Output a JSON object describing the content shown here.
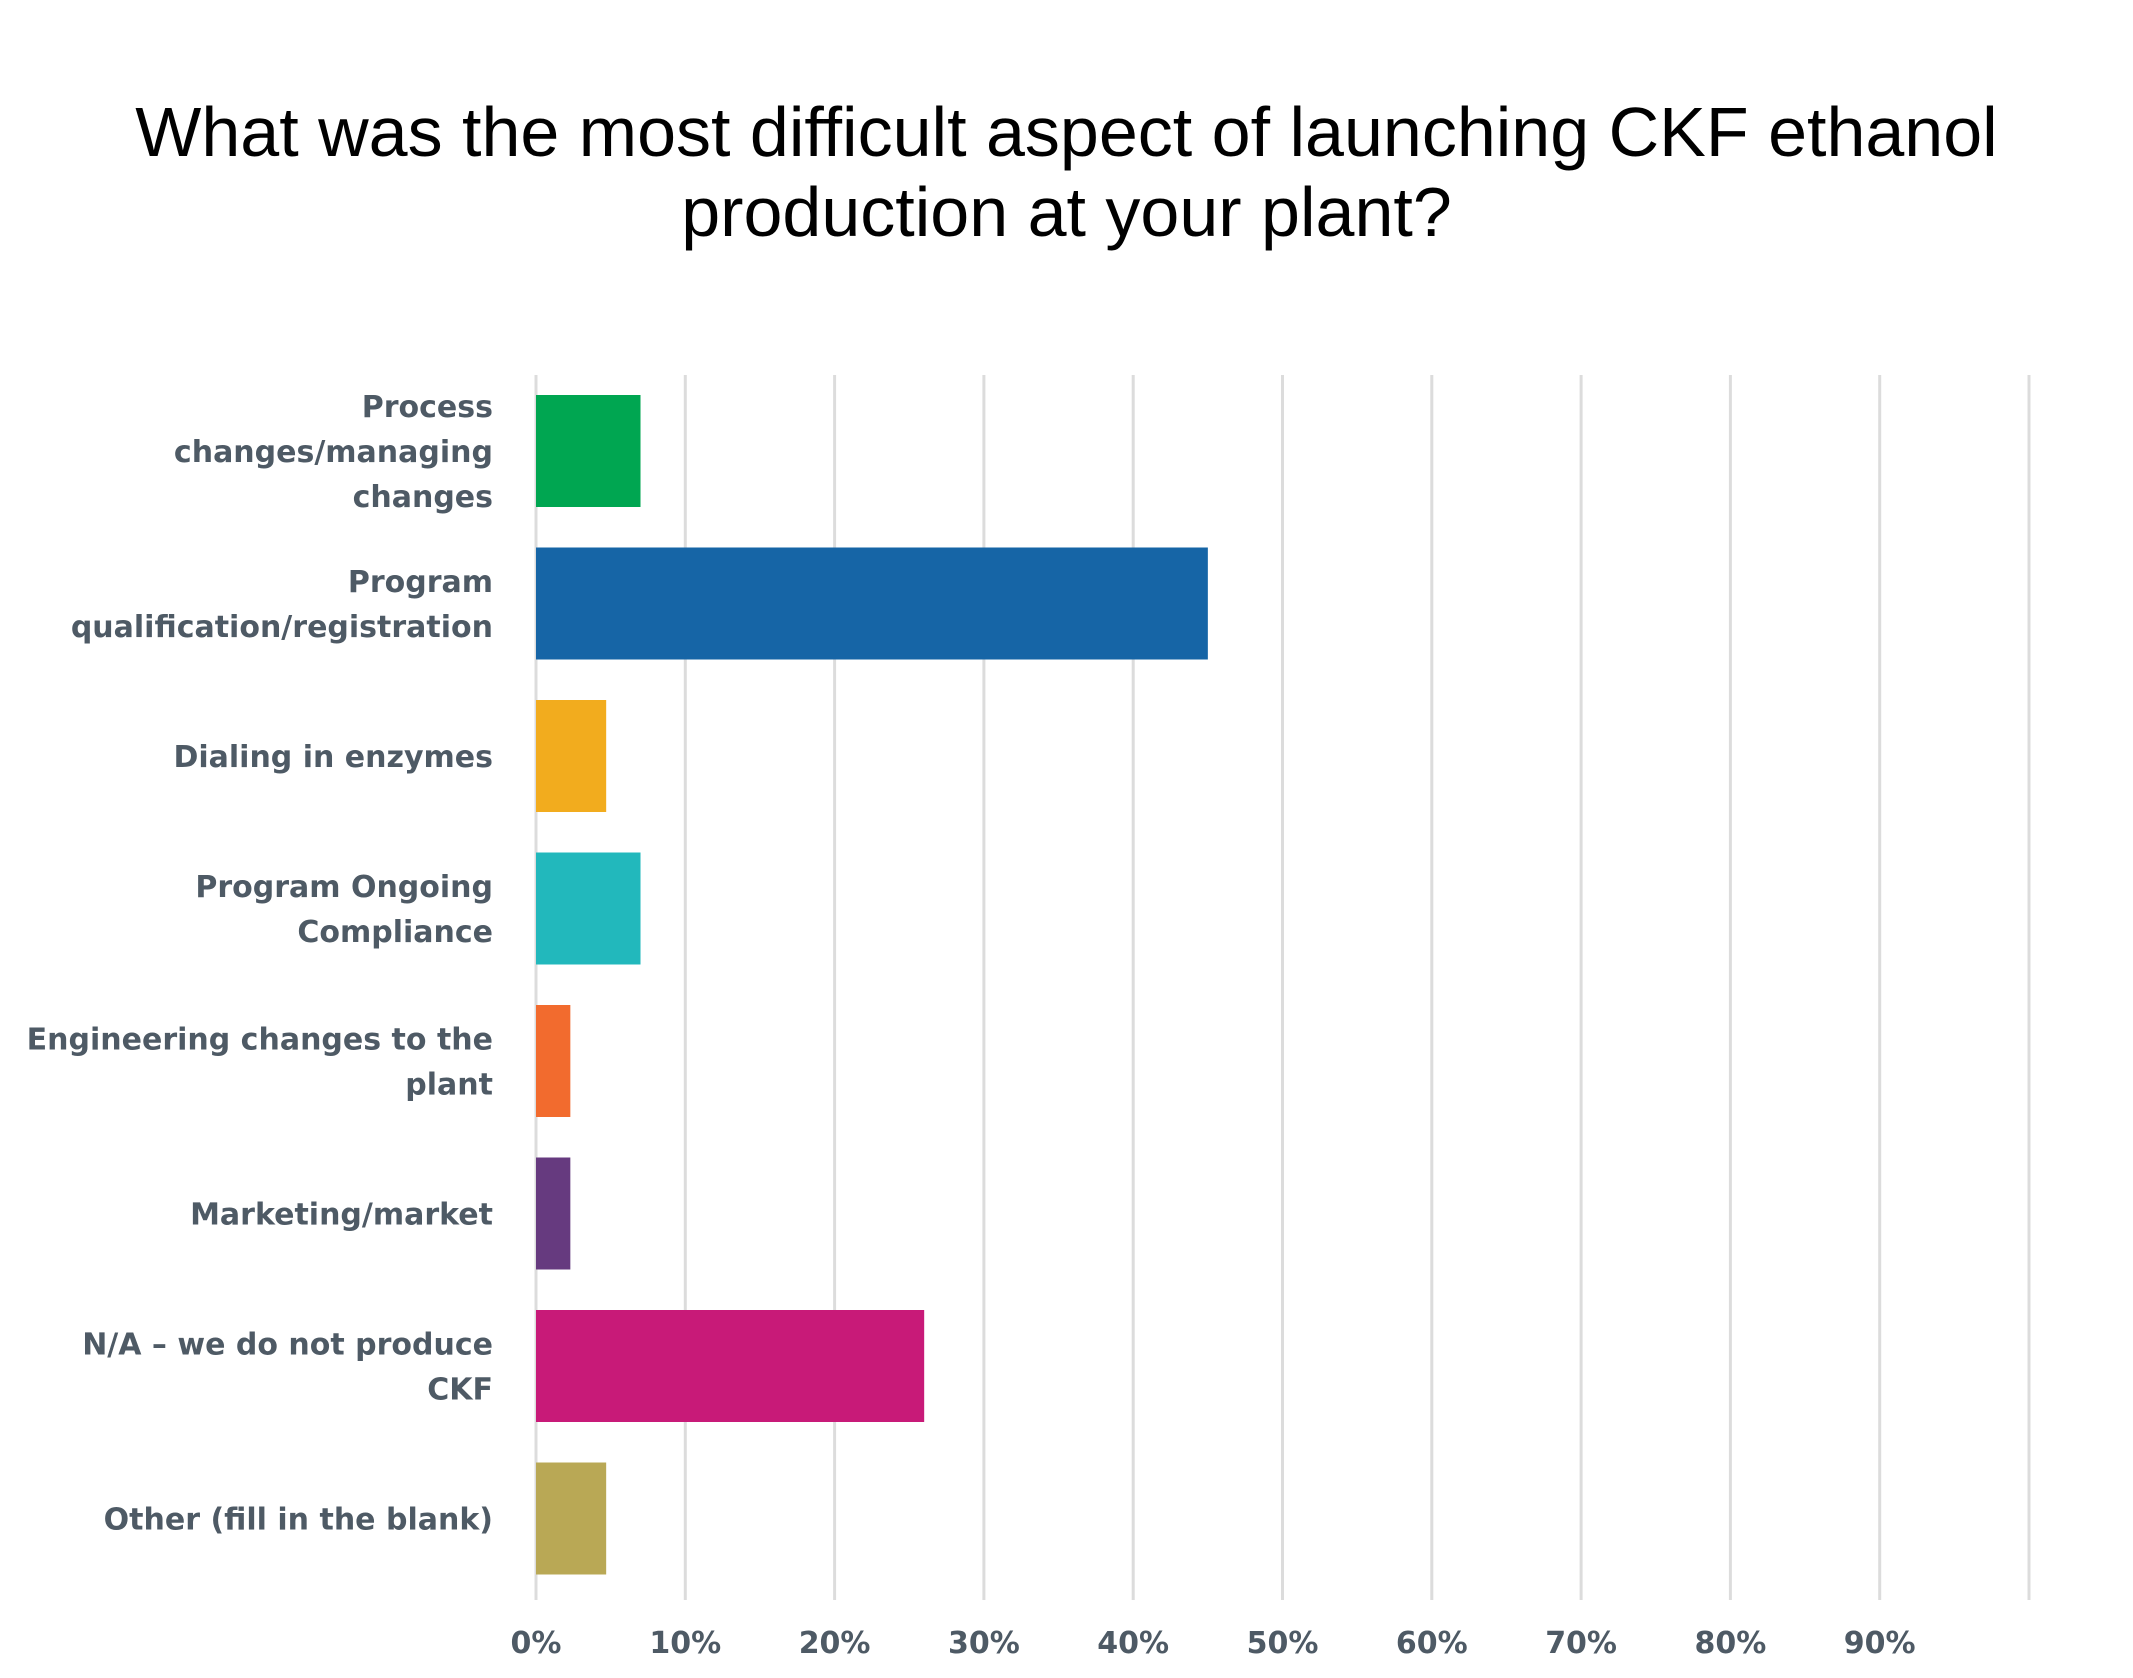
{
  "chart_data": {
    "type": "bar",
    "orientation": "horizontal",
    "title": "What was the most difficult aspect of launching CKF ethanol production at your plant?",
    "categories": [
      [
        "Process",
        "changes/managing",
        "changes"
      ],
      [
        "Program",
        "qualification/registration"
      ],
      [
        "Dialing in enzymes"
      ],
      [
        "Program Ongoing",
        "Compliance"
      ],
      [
        "Engineering changes to the",
        "plant"
      ],
      [
        "Marketing/market"
      ],
      [
        "N/A – we do not produce",
        "CKF"
      ],
      [
        "Other (fill in the blank)"
      ]
    ],
    "values": [
      7,
      45,
      4.7,
      7,
      2.3,
      2.3,
      26,
      4.7
    ],
    "colors": [
      "#00a651",
      "#1665a6",
      "#f2ac1e",
      "#22b8bc",
      "#f26b2e",
      "#663a7f",
      "#c81a78",
      "#b9a855"
    ],
    "xlim": [
      0,
      100
    ],
    "xticks": [
      "0%",
      "10%",
      "20%",
      "30%",
      "40%",
      "50%",
      "60%",
      "70%",
      "80%",
      "90%"
    ],
    "grid": true,
    "xlabel": "",
    "ylabel": ""
  }
}
